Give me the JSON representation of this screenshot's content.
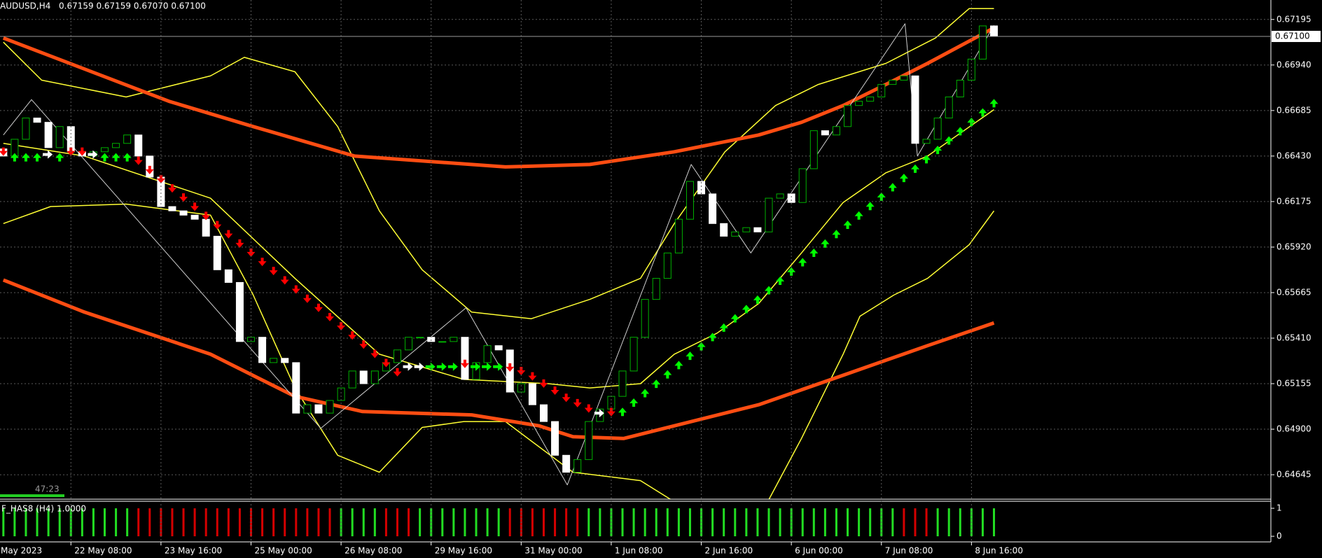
{
  "chart_data": {
    "type": "candlestick",
    "title": "AUDUSD,H4",
    "subtitle": "0.67159 0.67159 0.67070 0.67100",
    "timer": "47:23",
    "xlim": [
      -0.3,
      112.6
    ],
    "xticks": [
      {
        "value": -2,
        "label": "May 2023"
      },
      {
        "value": 6,
        "label": "22 May 08:00"
      },
      {
        "value": 14,
        "label": "23 May 16:00"
      },
      {
        "value": 22,
        "label": "25 May 00:00"
      },
      {
        "value": 30,
        "label": "26 May 08:00"
      },
      {
        "value": 38,
        "label": "29 May 16:00"
      },
      {
        "value": 46,
        "label": "31 May 00:00"
      },
      {
        "value": 54,
        "label": "1 Jun 08:00"
      },
      {
        "value": 62,
        "label": "2 Jun 16:00"
      },
      {
        "value": 70,
        "label": "6 Jun 00:00"
      },
      {
        "value": 78,
        "label": "7 Jun 08:00"
      },
      {
        "value": 86,
        "label": "8 Jun 16:00"
      }
    ],
    "ylim": [
      0.64508,
      0.67304
    ],
    "yticks": [
      0.67195,
      {
        "value": 0.6694,
        "label": "0.66940"
      },
      0.66685,
      {
        "value": 0.6643,
        "label": "0.66430"
      },
      0.66175,
      {
        "value": 0.6592,
        "label": "0.65920"
      },
      0.65665,
      {
        "value": 0.6541,
        "label": "0.65410"
      },
      0.65155,
      {
        "value": 0.649,
        "label": "0.64900"
      },
      0.64645
    ],
    "grid": true,
    "current_price": {
      "value": 0.671,
      "label": "0.67100"
    },
    "up_color": "#00b000",
    "down_color": "#ffffff",
    "open": [
      0.6647,
      0.6643,
      0.66524,
      0.66643,
      0.66619,
      0.66477,
      0.66595,
      0.66454,
      0.6643,
      0.66454,
      0.66477,
      0.66501,
      0.66548,
      0.6643,
      0.66312,
      0.66147,
      0.66123,
      0.66099,
      0.66076,
      0.65981,
      0.65793,
      0.65722,
      0.65391,
      0.65415,
      0.65273,
      0.65297,
      0.65273,
      0.6499,
      0.65037,
      0.6499,
      0.65061,
      0.65131,
      0.65226,
      0.65155,
      0.65226,
      0.65273,
      0.65344,
      0.65415,
      0.65415,
      0.65391,
      0.65391,
      0.65415,
      0.65179,
      0.65273,
      0.65368,
      0.65344,
      0.65108,
      0.65155,
      0.65037,
      0.64943,
      0.64754,
      0.64659,
      0.6473,
      0.64943,
      0.65013,
      0.65084,
      0.65226,
      0.65415,
      0.65627,
      0.65745,
      0.65887,
      0.66076,
      0.66288,
      0.66218,
      0.66052,
      0.65981,
      0.66005,
      0.66029,
      0.66005,
      0.66194,
      0.66218,
      0.6617,
      0.66359,
      0.66572,
      0.66548,
      0.66595,
      0.66713,
      0.66737,
      0.66761,
      0.66831,
      0.66855,
      0.66879,
      0.66501,
      0.66524,
      0.66643,
      0.66761,
      0.66855,
      0.66973,
      0.67159
    ],
    "close": [
      0.6643,
      0.66524,
      0.66643,
      0.66619,
      0.66477,
      0.66595,
      0.66454,
      0.6643,
      0.66454,
      0.66477,
      0.66501,
      0.66548,
      0.6643,
      0.66312,
      0.66147,
      0.66123,
      0.66099,
      0.66076,
      0.65981,
      0.65793,
      0.65722,
      0.65391,
      0.65415,
      0.65273,
      0.65297,
      0.65273,
      0.6499,
      0.65037,
      0.6499,
      0.65061,
      0.65131,
      0.65226,
      0.65155,
      0.65226,
      0.65273,
      0.65344,
      0.65415,
      0.65415,
      0.65391,
      0.65391,
      0.65415,
      0.65179,
      0.65273,
      0.65368,
      0.65344,
      0.65108,
      0.65155,
      0.65037,
      0.64943,
      0.64754,
      0.64659,
      0.6473,
      0.64943,
      0.65013,
      0.65084,
      0.65226,
      0.65415,
      0.65627,
      0.65745,
      0.65887,
      0.66076,
      0.66288,
      0.66218,
      0.66052,
      0.65981,
      0.66005,
      0.66029,
      0.66005,
      0.66194,
      0.66218,
      0.6617,
      0.66359,
      0.66572,
      0.66548,
      0.66595,
      0.66713,
      0.66737,
      0.66761,
      0.66831,
      0.66855,
      0.66879,
      0.66501,
      0.66524,
      0.66643,
      0.66761,
      0.66855,
      0.66973,
      0.67159,
      0.671
    ],
    "overlays": [
      {
        "color": "#ffff33",
        "width": 1.5,
        "x": [
          0,
          3.4,
          10.9,
          18.4,
          21.4,
          25.9,
          29.7,
          33.4,
          37.2,
          41.6,
          46.9,
          52.1,
          56.6,
          59.6,
          64.1,
          68.6,
          72.4,
          78.4,
          82.8,
          85.8,
          88
        ],
        "values": [
          0.67068,
          0.66855,
          0.66761,
          0.66879,
          0.66983,
          0.66902,
          0.66595,
          0.66123,
          0.65793,
          0.65556,
          0.65519,
          0.65627,
          0.65745,
          0.66052,
          0.66454,
          0.66713,
          0.66831,
          0.66949,
          0.67091,
          0.67256,
          0.67256
        ]
      },
      {
        "color": "#ffff33",
        "width": 1.5,
        "x": [
          0,
          4.2,
          10.9,
          18.4,
          22.2,
          25.9,
          29.7,
          33.4,
          37.2,
          40.9,
          44.6,
          50.6,
          56.6,
          59.6,
          64,
          67.9,
          70.9,
          74.6,
          76.1,
          79.1,
          82.1,
          85.8,
          88
        ],
        "values": [
          0.66052,
          0.66147,
          0.66161,
          0.66099,
          0.65651,
          0.65131,
          0.64754,
          0.64659,
          0.6491,
          0.64943,
          0.64943,
          0.64659,
          0.64612,
          0.64494,
          null,
          0.64494,
          0.64848,
          0.6532,
          0.65533,
          0.65651,
          0.65745,
          0.65934,
          0.66123
        ]
      },
      {
        "color": "#ffff33",
        "width": 1.5,
        "x": [
          0,
          7.2,
          18.4,
          25.9,
          33.4,
          40.9,
          48.4,
          52.1,
          56.6,
          59.6,
          63.4,
          67.1,
          70.9,
          74.6,
          78.4,
          82.1,
          88
        ],
        "values": [
          0.66501,
          0.6643,
          0.66194,
          0.65745,
          0.6532,
          0.65179,
          0.65155,
          0.65131,
          0.65155,
          0.6532,
          0.65438,
          0.65604,
          0.65887,
          0.6617,
          0.66336,
          0.6643,
          0.6669
        ]
      },
      {
        "color": "#ff4d12",
        "width": 5,
        "x": [
          0,
          14.7,
          22.2,
          31.2,
          44.6,
          52.1,
          59.6,
          67.1,
          70.9,
          74.6,
          78.4,
          82.1,
          88
        ],
        "values": [
          0.67091,
          0.66737,
          0.66595,
          0.6643,
          0.66369,
          0.66383,
          0.66454,
          0.66548,
          0.66619,
          0.66713,
          0.66831,
          0.66949,
          0.67148
        ]
      },
      {
        "color": "#ff4d12",
        "width": 5,
        "x": [
          0,
          7.2,
          18.4,
          25.9,
          31.9,
          41.6,
          47.6,
          50.6,
          55.1,
          59.6,
          67.1,
          74.6,
          82.1,
          88
        ],
        "values": [
          0.65736,
          0.65556,
          0.6532,
          0.65084,
          0.64999,
          0.6498,
          0.64919,
          0.64858,
          0.64848,
          0.64919,
          0.65037,
          0.65202,
          0.65368,
          0.65495
        ]
      },
      {
        "color": "#cfcfcf",
        "width": 1,
        "x": [
          0,
          2.5,
          28.2,
          41.1,
          50.1,
          61.1,
          66.4,
          80.1,
          81.2,
          88
        ],
        "values": [
          0.66548,
          0.66746,
          0.64905,
          0.6558,
          0.64588,
          0.66383,
          0.65887,
          0.67171,
          0.6643,
          0.67162
        ]
      }
    ],
    "signals": {
      "colors": {
        "up": "#00ff00",
        "down": "#ff0000",
        "side": "#00ff00",
        "neutral": "#ffffff"
      },
      "directions": [
        "down",
        "up",
        "up",
        "up",
        "neutral",
        "up",
        "down",
        "down",
        "neutral",
        "up",
        "up",
        "up",
        "down",
        "down",
        "down",
        "down",
        "down",
        "down",
        "down",
        "down",
        "down",
        "down",
        "down",
        "down",
        "down",
        "down",
        "down",
        "down",
        "down",
        "down",
        "down",
        "down",
        "down",
        "down",
        "down",
        "down",
        "neutral",
        "neutral",
        "side",
        "side",
        "side",
        "down",
        "side",
        "side",
        "side",
        "down",
        "down",
        "down",
        "down",
        "down",
        "down",
        "down",
        "down",
        "neutral",
        "down",
        "up",
        "up",
        "up",
        "up",
        "up",
        "up",
        "up",
        "up",
        "up",
        "up",
        "up",
        "up",
        "up",
        "up",
        "up",
        "up",
        "up",
        "up",
        "up",
        "up",
        "up",
        "up",
        "up",
        "up",
        "up",
        "up",
        "up",
        "up",
        "up",
        "up",
        "up",
        "up",
        "up",
        "up"
      ],
      "values": [
        0.66439,
        0.66439,
        0.66439,
        0.66439,
        0.66439,
        0.66439,
        0.66439,
        0.66439,
        0.66439,
        0.66439,
        0.66439,
        0.66439,
        0.66388,
        0.66336,
        0.66285,
        0.66233,
        0.66182,
        0.6613,
        0.66079,
        0.66027,
        0.65976,
        0.65924,
        0.65873,
        0.65821,
        0.6577,
        0.65718,
        0.65667,
        0.65615,
        0.65564,
        0.65512,
        0.65461,
        0.65409,
        0.65358,
        0.65306,
        0.65255,
        0.65203,
        0.6525,
        0.6525,
        0.6525,
        0.6525,
        0.6525,
        0.6525,
        0.6525,
        0.6525,
        0.6525,
        0.6523,
        0.6521,
        0.6518,
        0.6514,
        0.651,
        0.6506,
        0.6503,
        0.65,
        0.6499,
        0.6498,
        0.65013,
        0.65065,
        0.65118,
        0.6517,
        0.65223,
        0.65275,
        0.65327,
        0.6538,
        0.65432,
        0.65485,
        0.65537,
        0.65589,
        0.65642,
        0.65694,
        0.65747,
        0.65799,
        0.65851,
        0.65904,
        0.65956,
        0.66009,
        0.66061,
        0.66113,
        0.66166,
        0.66218,
        0.66271,
        0.66323,
        0.66375,
        0.66428,
        0.6648,
        0.66533,
        0.66585,
        0.66637,
        0.6669,
        0.66742
      ]
    },
    "indicator": {
      "type": "histogram",
      "title": "F_HAS8 (H4) 1.0000",
      "ylim": [
        0,
        1
      ],
      "yticks": [
        1,
        0
      ],
      "colors": {
        "up": "#22dd22",
        "down": "#d40000"
      },
      "values": [
        1,
        1,
        1,
        1,
        1,
        1,
        1,
        1,
        1,
        1,
        1,
        1,
        1,
        1,
        1,
        1,
        1,
        1,
        1,
        1,
        1,
        1,
        1,
        1,
        1,
        1,
        1,
        1,
        1,
        1,
        1,
        1,
        1,
        1,
        1,
        1,
        1,
        1,
        1,
        1,
        1,
        1,
        1,
        1,
        1,
        1,
        1,
        1,
        1,
        1,
        1,
        1,
        1,
        1,
        1,
        1,
        1,
        1,
        1,
        1,
        1,
        1,
        1,
        1,
        1,
        1,
        1,
        1,
        1,
        1,
        1,
        1,
        1,
        1,
        1,
        1,
        1,
        1,
        1,
        1,
        1,
        1,
        1,
        1,
        1,
        1,
        1,
        1,
        1
      ],
      "states": [
        "up",
        "up",
        "up",
        "up",
        "up",
        "up",
        "up",
        "up",
        "up",
        "up",
        "up",
        "up",
        "down",
        "down",
        "down",
        "down",
        "down",
        "down",
        "down",
        "down",
        "down",
        "down",
        "down",
        "down",
        "down",
        "down",
        "down",
        "down",
        "down",
        "down",
        "up",
        "up",
        "up",
        "up",
        "down",
        "down",
        "down",
        "up",
        "up",
        "up",
        "up",
        "up",
        "up",
        "up",
        "up",
        "down",
        "down",
        "down",
        "down",
        "down",
        "down",
        "down",
        "up",
        "up",
        "up",
        "up",
        "up",
        "up",
        "up",
        "up",
        "up",
        "up",
        "up",
        "up",
        "up",
        "up",
        "up",
        "up",
        "up",
        "up",
        "up",
        "up",
        "up",
        "up",
        "up",
        "up",
        "up",
        "up",
        "up",
        "up",
        "down",
        "down",
        "down",
        "up",
        "up",
        "up",
        "up",
        "up",
        "up"
      ]
    }
  }
}
